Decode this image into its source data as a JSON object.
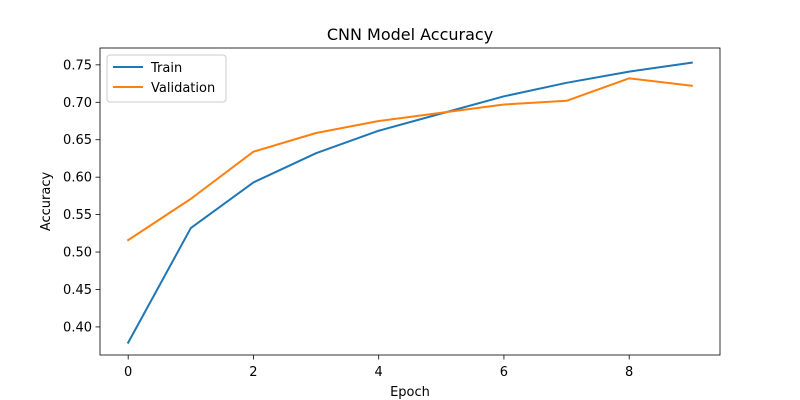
{
  "chart_data": {
    "type": "line",
    "title": "CNN Model Accuracy",
    "xlabel": "Epoch",
    "ylabel": "Accuracy",
    "x": [
      0,
      1,
      2,
      3,
      4,
      5,
      6,
      7,
      8,
      9
    ],
    "xlim": [
      -0.45,
      9.45
    ],
    "ylim": [
      0.3625,
      0.7725
    ],
    "xticks": [
      0,
      2,
      4,
      6,
      8
    ],
    "yticks": [
      0.4,
      0.45,
      0.5,
      0.55,
      0.6,
      0.65,
      0.7,
      0.75
    ],
    "ytick_labels": [
      "0.40",
      "0.45",
      "0.50",
      "0.55",
      "0.60",
      "0.65",
      "0.70",
      "0.75"
    ],
    "grid": false,
    "legend_position": "top-left",
    "series": [
      {
        "name": "Train",
        "color": "#1f77b4",
        "values": [
          0.379,
          0.532,
          0.593,
          0.632,
          0.662,
          0.685,
          0.708,
          0.726,
          0.741,
          0.753
        ]
      },
      {
        "name": "Validation",
        "color": "#ff7f0e",
        "values": [
          0.516,
          0.571,
          0.634,
          0.659,
          0.675,
          0.686,
          0.697,
          0.702,
          0.732,
          0.722
        ]
      }
    ]
  }
}
